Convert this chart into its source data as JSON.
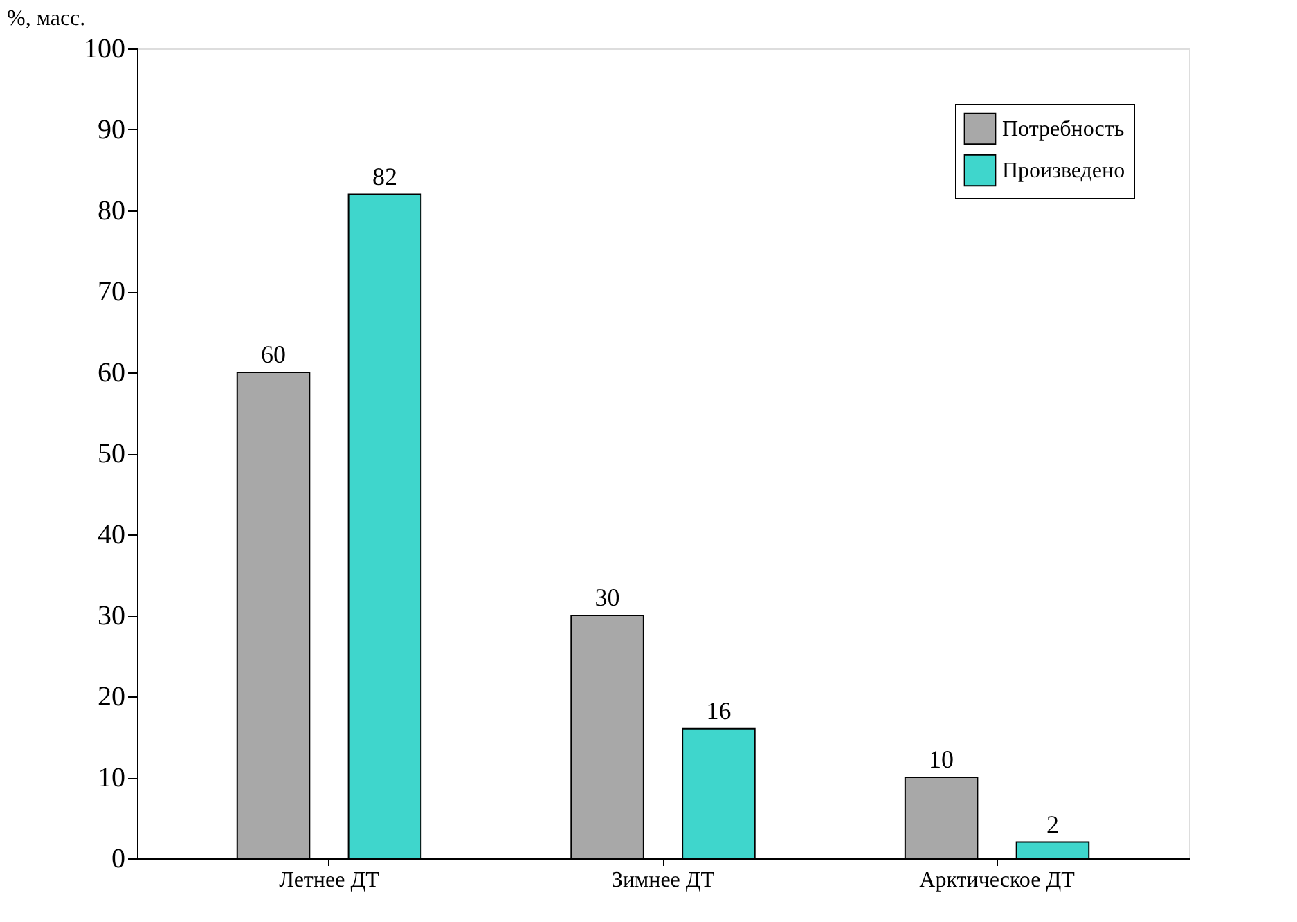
{
  "chart_data": {
    "type": "bar",
    "ylabel": "%, масс.",
    "categories": [
      "Летнее ДТ",
      "Зимнее ДТ",
      "Арктическое ДТ"
    ],
    "series": [
      {
        "name": "Потребность",
        "color": "#a8a8a8",
        "values": [
          60,
          30,
          10
        ]
      },
      {
        "name": "Произведено",
        "color": "#3fd6cc",
        "values": [
          82,
          16,
          2
        ]
      }
    ],
    "ylim": [
      0,
      100
    ],
    "yticks": [
      0,
      10,
      20,
      30,
      40,
      50,
      60,
      70,
      80,
      90,
      100
    ],
    "grid": false,
    "legend": "top right",
    "data_labels": true
  }
}
